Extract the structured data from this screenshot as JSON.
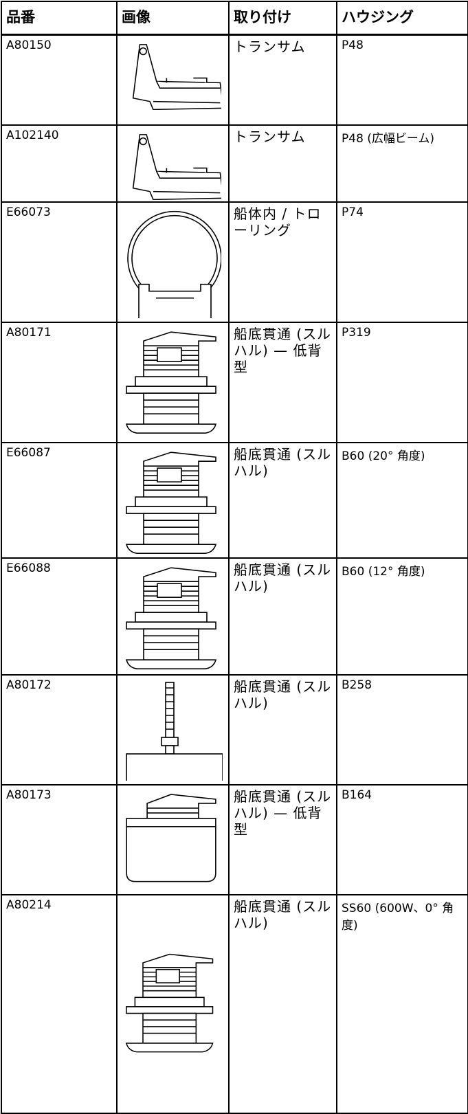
{
  "table": {
    "headers": [
      "品番",
      "画像",
      "取り付け",
      "ハウジング"
    ],
    "rows": [
      {
        "part": "A80150",
        "mounting": "トランサム",
        "housing": "P48"
      },
      {
        "part": "A102140",
        "mounting": "トランサム",
        "housing": "P48 (広幅ビーム)"
      },
      {
        "part": "E66073",
        "mounting": "船体内 / トローリング",
        "housing": "P74"
      },
      {
        "part": "A80171",
        "mounting": "船底貫通 (スルハル) — 低背型",
        "housing": "P319"
      },
      {
        "part": "E66087",
        "mounting": "船底貫通 (スルハル)",
        "housing": "B60 (20° 角度)"
      },
      {
        "part": "E66088",
        "mounting": "船底貫通 (スルハル)",
        "housing": "B60 (12° 角度)"
      },
      {
        "part": "A80172",
        "mounting": "船底貫通 (スルハル)",
        "housing": "B258"
      },
      {
        "part": "A80173",
        "mounting": "船底貫通 (スルハル) — 低背型",
        "housing": "B164"
      },
      {
        "part": "A80214",
        "mounting": "船底貫通 (スルハル)",
        "housing": "SS60 (600W、0° 角度)"
      }
    ]
  }
}
